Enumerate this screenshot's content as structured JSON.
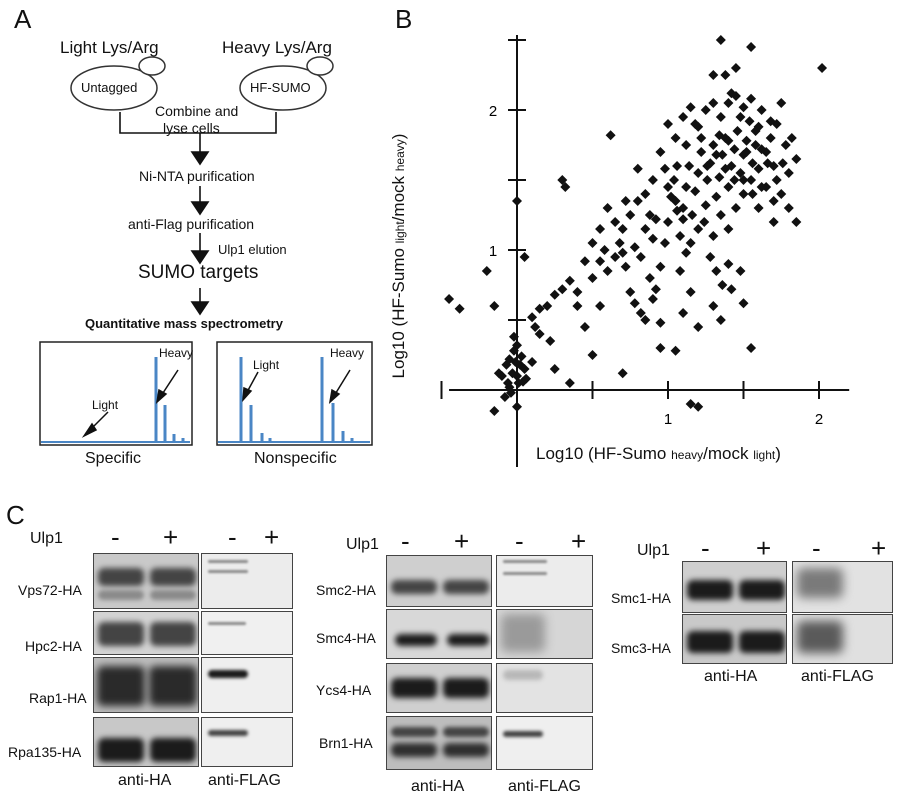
{
  "panels": {
    "a": "A",
    "b": "B",
    "c": "C"
  },
  "workflow": {
    "light_label": "Light Lys/Arg",
    "heavy_label": "Heavy Lys/Arg",
    "untagged_cell": "Untagged",
    "tagged_cell": "HF-SUMO",
    "combine_line1": "Combine and",
    "combine_line2": "lyse cells",
    "step_nta": "Ni-NTA purification",
    "step_flag": "anti-Flag purification",
    "step_elution": "Ulp1 elution",
    "targets": "SUMO targets",
    "ms": "Quantitative mass spectrometry",
    "specific": {
      "caption": "Specific",
      "heavy": "Heavy",
      "light": "Light"
    },
    "nonspecific": {
      "caption": "Nonspecific",
      "heavy": "Heavy",
      "light": "Light"
    },
    "peak_color": "#4a86c5"
  },
  "chart_data": {
    "type": "scatter",
    "xlabel": "Log10 (HF-Sumo heavy/mock light)",
    "ylabel": "Log10 (HF-Sumo light/mock heavy)",
    "xticks": [
      "1",
      "2"
    ],
    "yticks": [
      "1",
      "2"
    ],
    "xlim": [
      -0.45,
      2.2
    ],
    "ylim": [
      -0.55,
      2.55
    ],
    "marker": "diamond",
    "color": "#111111",
    "points": [
      [
        -0.45,
        0.65
      ],
      [
        -0.38,
        0.58
      ],
      [
        -0.2,
        0.85
      ],
      [
        -0.15,
        0.6
      ],
      [
        -0.12,
        0.12
      ],
      [
        -0.1,
        0.1
      ],
      [
        -0.08,
        -0.05
      ],
      [
        -0.07,
        0.18
      ],
      [
        -0.06,
        0.05
      ],
      [
        -0.05,
        0.02
      ],
      [
        -0.04,
        -0.02
      ],
      [
        -0.03,
        0.12
      ],
      [
        -0.02,
        0.28
      ],
      [
        -0.01,
        0.2
      ],
      [
        0.0,
        0.32
      ],
      [
        0.0,
        0.1
      ],
      [
        0.01,
        0.05
      ],
      [
        0.02,
        0.18
      ],
      [
        0.03,
        0.24
      ],
      [
        0.04,
        0.06
      ],
      [
        -0.05,
        0.22
      ],
      [
        0.05,
        0.15
      ],
      [
        0.06,
        0.08
      ],
      [
        -0.02,
        0.38
      ],
      [
        0.0,
        -0.12
      ],
      [
        -0.15,
        -0.15
      ],
      [
        0.0,
        1.35
      ],
      [
        0.05,
        0.95
      ],
      [
        0.1,
        0.52
      ],
      [
        0.12,
        0.45
      ],
      [
        0.15,
        0.58
      ],
      [
        0.2,
        0.6
      ],
      [
        0.25,
        0.68
      ],
      [
        0.3,
        0.72
      ],
      [
        0.35,
        0.78
      ],
      [
        0.3,
        1.5
      ],
      [
        0.32,
        1.45
      ],
      [
        0.4,
        0.6
      ],
      [
        0.45,
        0.92
      ],
      [
        0.5,
        0.8
      ],
      [
        0.55,
        0.92
      ],
      [
        0.6,
        0.85
      ],
      [
        0.55,
        1.15
      ],
      [
        0.6,
        1.3
      ],
      [
        0.65,
        1.2
      ],
      [
        0.68,
        1.05
      ],
      [
        0.7,
        0.98
      ],
      [
        0.72,
        1.35
      ],
      [
        0.75,
        1.25
      ],
      [
        0.78,
        1.02
      ],
      [
        0.8,
        1.35
      ],
      [
        0.82,
        0.95
      ],
      [
        0.85,
        1.15
      ],
      [
        0.88,
        1.25
      ],
      [
        0.9,
        1.08
      ],
      [
        0.62,
        1.82
      ],
      [
        0.75,
        0.7
      ],
      [
        0.78,
        0.62
      ],
      [
        0.82,
        0.55
      ],
      [
        0.85,
        0.5
      ],
      [
        0.8,
        1.58
      ],
      [
        0.88,
        0.8
      ],
      [
        0.9,
        0.65
      ],
      [
        0.92,
        0.72
      ],
      [
        0.95,
        0.88
      ],
      [
        0.98,
        1.05
      ],
      [
        1.0,
        1.2
      ],
      [
        1.02,
        1.38
      ],
      [
        1.04,
        1.5
      ],
      [
        1.06,
        1.28
      ],
      [
        1.08,
        1.1
      ],
      [
        1.1,
        1.3
      ],
      [
        1.12,
        1.45
      ],
      [
        1.14,
        1.6
      ],
      [
        1.16,
        1.25
      ],
      [
        1.18,
        1.42
      ],
      [
        1.2,
        1.55
      ],
      [
        1.22,
        1.7
      ],
      [
        1.24,
        1.2
      ],
      [
        1.26,
        1.5
      ],
      [
        1.28,
        1.62
      ],
      [
        1.3,
        1.75
      ],
      [
        1.32,
        1.38
      ],
      [
        1.34,
        1.52
      ],
      [
        1.36,
        1.68
      ],
      [
        1.38,
        1.8
      ],
      [
        1.4,
        1.45
      ],
      [
        1.42,
        1.6
      ],
      [
        1.44,
        1.72
      ],
      [
        1.46,
        1.85
      ],
      [
        1.48,
        1.55
      ],
      [
        1.5,
        1.68
      ],
      [
        1.52,
        1.78
      ],
      [
        1.54,
        1.92
      ],
      [
        1.56,
        1.62
      ],
      [
        1.58,
        1.75
      ],
      [
        1.6,
        1.88
      ],
      [
        1.62,
        2.0
      ],
      [
        1.65,
        1.7
      ],
      [
        1.68,
        1.8
      ],
      [
        1.7,
        1.6
      ],
      [
        1.72,
        1.9
      ],
      [
        1.75,
        2.05
      ],
      [
        1.78,
        1.75
      ],
      [
        1.8,
        1.55
      ],
      [
        1.82,
        1.8
      ],
      [
        1.85,
        1.65
      ],
      [
        1.0,
        1.9
      ],
      [
        1.05,
        1.8
      ],
      [
        1.1,
        1.95
      ],
      [
        1.15,
        2.02
      ],
      [
        1.2,
        1.88
      ],
      [
        1.25,
        2.0
      ],
      [
        1.3,
        2.05
      ],
      [
        1.35,
        1.95
      ],
      [
        1.4,
        2.05
      ],
      [
        1.45,
        2.1
      ],
      [
        1.5,
        2.02
      ],
      [
        1.55,
        2.08
      ],
      [
        1.38,
        2.25
      ],
      [
        1.42,
        2.12
      ],
      [
        1.35,
        2.5
      ],
      [
        1.45,
        2.3
      ],
      [
        1.55,
        2.45
      ],
      [
        2.02,
        2.3
      ],
      [
        1.3,
        2.25
      ],
      [
        0.98,
        1.58
      ],
      [
        1.0,
        1.45
      ],
      [
        1.05,
        1.35
      ],
      [
        1.1,
        1.22
      ],
      [
        1.15,
        1.05
      ],
      [
        1.2,
        1.15
      ],
      [
        1.25,
        1.32
      ],
      [
        1.3,
        1.1
      ],
      [
        1.35,
        1.25
      ],
      [
        1.4,
        1.15
      ],
      [
        1.45,
        1.3
      ],
      [
        1.5,
        1.4
      ],
      [
        1.55,
        1.5
      ],
      [
        1.6,
        1.3
      ],
      [
        1.65,
        1.45
      ],
      [
        1.7,
        1.2
      ],
      [
        1.75,
        1.4
      ],
      [
        1.8,
        1.3
      ],
      [
        1.85,
        1.2
      ],
      [
        1.28,
        0.95
      ],
      [
        1.32,
        0.85
      ],
      [
        1.36,
        0.75
      ],
      [
        1.4,
        0.9
      ],
      [
        1.42,
        0.72
      ],
      [
        1.5,
        0.62
      ],
      [
        1.48,
        0.85
      ],
      [
        1.55,
        0.3
      ],
      [
        1.2,
        0.45
      ],
      [
        1.3,
        0.6
      ],
      [
        1.35,
        0.5
      ],
      [
        1.15,
        -0.1
      ],
      [
        1.2,
        -0.12
      ],
      [
        0.95,
        0.3
      ],
      [
        1.05,
        0.28
      ],
      [
        0.7,
        0.12
      ],
      [
        0.5,
        0.25
      ],
      [
        0.35,
        0.05
      ],
      [
        0.25,
        0.15
      ],
      [
        1.1,
        0.55
      ],
      [
        1.15,
        0.7
      ],
      [
        0.55,
        0.6
      ],
      [
        0.45,
        0.45
      ],
      [
        0.9,
        1.5
      ],
      [
        0.95,
        1.7
      ],
      [
        1.06,
        1.6
      ],
      [
        1.12,
        1.75
      ],
      [
        1.18,
        1.9
      ],
      [
        1.22,
        1.8
      ],
      [
        1.26,
        1.6
      ],
      [
        1.32,
        1.68
      ],
      [
        1.38,
        1.58
      ],
      [
        1.44,
        1.5
      ],
      [
        1.5,
        1.5
      ],
      [
        1.56,
        1.4
      ],
      [
        1.6,
        1.58
      ],
      [
        1.66,
        1.62
      ],
      [
        1.34,
        1.82
      ],
      [
        1.4,
        1.78
      ],
      [
        1.48,
        1.95
      ],
      [
        1.52,
        1.7
      ],
      [
        1.58,
        1.85
      ],
      [
        1.62,
        1.72
      ],
      [
        1.68,
        1.92
      ],
      [
        1.72,
        1.5
      ],
      [
        1.76,
        1.62
      ],
      [
        1.62,
        1.45
      ],
      [
        1.7,
        1.35
      ],
      [
        0.5,
        1.05
      ],
      [
        0.58,
        1.0
      ],
      [
        0.65,
        0.95
      ],
      [
        0.72,
        0.88
      ],
      [
        0.4,
        0.7
      ],
      [
        0.22,
        0.35
      ],
      [
        0.15,
        0.4
      ],
      [
        0.1,
        0.2
      ],
      [
        0.7,
        1.15
      ],
      [
        0.85,
        1.4
      ],
      [
        0.92,
        1.22
      ],
      [
        1.08,
        0.85
      ],
      [
        1.12,
        0.98
      ],
      [
        0.95,
        0.48
      ]
    ]
  },
  "blots": {
    "ulp1": "Ulp1",
    "minus": "-",
    "plus": "+",
    "anti_ha": "anti-HA",
    "anti_flag": "anti-FLAG",
    "group1": [
      "Vps72-HA",
      "Hpc2-HA",
      "Rap1-HA",
      "Rpa135-HA"
    ],
    "group2": [
      "Smc2-HA",
      "Smc4-HA",
      "Ycs4-HA",
      "Brn1-HA"
    ],
    "group3": [
      "Smc1-HA",
      "Smc3-HA"
    ]
  }
}
